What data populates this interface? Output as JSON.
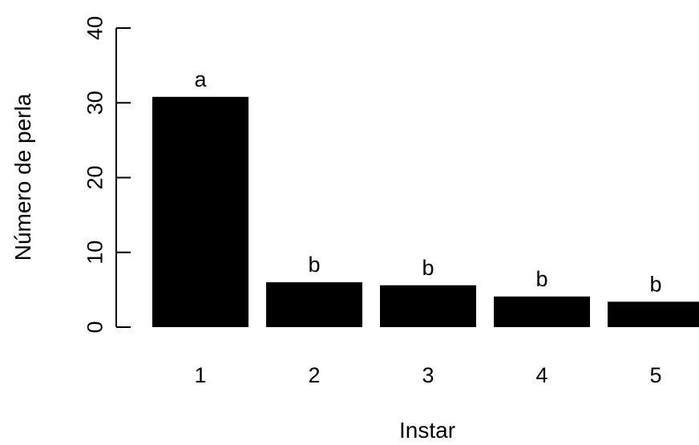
{
  "chart_data": {
    "type": "bar",
    "categories": [
      "1",
      "2",
      "3",
      "4",
      "5"
    ],
    "values": [
      30.8,
      6.0,
      5.6,
      4.1,
      3.4
    ],
    "significance_labels": [
      "a",
      "b",
      "b",
      "b",
      "b"
    ],
    "xlabel": "Instar",
    "ylabel": "Número de perla",
    "ylim": [
      0,
      40
    ],
    "yticks": [
      "0",
      "10",
      "20",
      "30",
      "40"
    ],
    "bar_color": "#000000",
    "grid": false
  }
}
